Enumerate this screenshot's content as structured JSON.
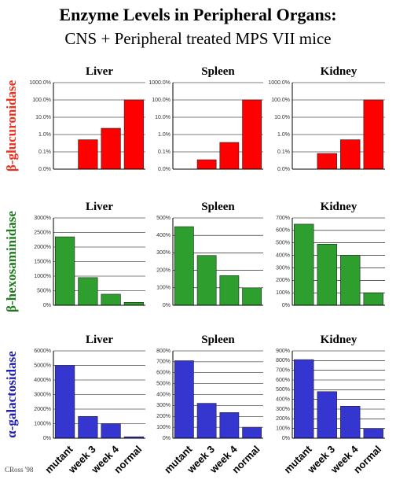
{
  "title": "Enzyme Levels in Peripheral Organs:",
  "subtitle": "CNS + Peripheral treated MPS VII mice",
  "credit": "CRoss '98",
  "categories": [
    "mutant",
    "week 3",
    "week 4",
    "normal"
  ],
  "rows": [
    {
      "label": "β-glucuronidase",
      "color": "#e8321e"
    },
    {
      "label": "β-hexosaminidase",
      "color": "#1f7a1f"
    },
    {
      "label": "α-galactosidase",
      "color": "#1f1fb0"
    }
  ],
  "chart_data": [
    {
      "type": "bar",
      "title": "Liver",
      "color": "#ff0000",
      "log": true,
      "values": [
        0.01,
        0.5,
        2.3,
        100
      ],
      "ylim": [
        0.01,
        1000
      ],
      "yticks": [
        {
          "value": 0.01,
          "label": "0.0%"
        },
        {
          "value": 0.1,
          "label": "0.1%"
        },
        {
          "value": 1,
          "label": "1.0%"
        },
        {
          "value": 10,
          "label": "10.0%"
        },
        {
          "value": 100,
          "label": "100.0%"
        },
        {
          "value": 1000,
          "label": "1000.0%"
        }
      ]
    },
    {
      "type": "bar",
      "title": "Spleen",
      "color": "#ff0000",
      "log": true,
      "values": [
        0.01,
        0.035,
        0.35,
        100
      ],
      "ylim": [
        0.01,
        1000
      ],
      "yticks": [
        {
          "value": 0.01,
          "label": "0.0%"
        },
        {
          "value": 0.1,
          "label": "0.1%"
        },
        {
          "value": 1,
          "label": "1.0%"
        },
        {
          "value": 10,
          "label": "10.0%"
        },
        {
          "value": 100,
          "label": "100.0%"
        },
        {
          "value": 1000,
          "label": "1000.0%"
        }
      ]
    },
    {
      "type": "bar",
      "title": "Kidney",
      "color": "#ff0000",
      "log": true,
      "values": [
        0.01,
        0.08,
        0.5,
        100
      ],
      "ylim": [
        0.01,
        1000
      ],
      "yticks": [
        {
          "value": 0.01,
          "label": "0.0%"
        },
        {
          "value": 0.1,
          "label": "0.1%"
        },
        {
          "value": 1,
          "label": "1.0%"
        },
        {
          "value": 10,
          "label": "10.0%"
        },
        {
          "value": 100,
          "label": "100.0%"
        },
        {
          "value": 1000,
          "label": "1000.0%"
        }
      ]
    },
    {
      "type": "bar",
      "title": "Liver",
      "color": "#2e9e2e",
      "values": [
        2350,
        950,
        380,
        100
      ],
      "ylim": [
        0,
        3000
      ],
      "yticks": [
        {
          "value": 0,
          "label": "0%"
        },
        {
          "value": 500,
          "label": "500%"
        },
        {
          "value": 1000,
          "label": "1000%"
        },
        {
          "value": 1500,
          "label": "1500%"
        },
        {
          "value": 2000,
          "label": "2000%"
        },
        {
          "value": 2500,
          "label": "2500%"
        },
        {
          "value": 3000,
          "label": "3000%"
        }
      ]
    },
    {
      "type": "bar",
      "title": "Spleen",
      "color": "#2e9e2e",
      "values": [
        450,
        285,
        170,
        100
      ],
      "ylim": [
        0,
        500
      ],
      "yticks": [
        {
          "value": 0,
          "label": "0%"
        },
        {
          "value": 100,
          "label": "100%"
        },
        {
          "value": 200,
          "label": "200%"
        },
        {
          "value": 300,
          "label": "300%"
        },
        {
          "value": 400,
          "label": "400%"
        },
        {
          "value": 500,
          "label": "500%"
        }
      ]
    },
    {
      "type": "bar",
      "title": "Kidney",
      "color": "#2e9e2e",
      "values": [
        650,
        490,
        400,
        100
      ],
      "ylim": [
        0,
        700
      ],
      "yticks": [
        {
          "value": 0,
          "label": "0%"
        },
        {
          "value": 100,
          "label": "100%"
        },
        {
          "value": 200,
          "label": "200%"
        },
        {
          "value": 300,
          "label": "300%"
        },
        {
          "value": 400,
          "label": "400%"
        },
        {
          "value": 500,
          "label": "500%"
        },
        {
          "value": 600,
          "label": "600%"
        },
        {
          "value": 700,
          "label": "700%"
        }
      ]
    },
    {
      "type": "bar",
      "title": "Liver",
      "color": "#3535d0",
      "values": [
        5000,
        1500,
        1000,
        100
      ],
      "ylim": [
        0,
        6000
      ],
      "yticks": [
        {
          "value": 0,
          "label": "0%"
        },
        {
          "value": 1000,
          "label": "1000%"
        },
        {
          "value": 2000,
          "label": "2000%"
        },
        {
          "value": 3000,
          "label": "3000%"
        },
        {
          "value": 4000,
          "label": "4000%"
        },
        {
          "value": 5000,
          "label": "5000%"
        },
        {
          "value": 6000,
          "label": "6000%"
        }
      ]
    },
    {
      "type": "bar",
      "title": "Spleen",
      "color": "#3535d0",
      "values": [
        710,
        320,
        235,
        100
      ],
      "ylim": [
        0,
        800
      ],
      "yticks": [
        {
          "value": 0,
          "label": "0%"
        },
        {
          "value": 100,
          "label": "100%"
        },
        {
          "value": 200,
          "label": "200%"
        },
        {
          "value": 300,
          "label": "300%"
        },
        {
          "value": 400,
          "label": "400%"
        },
        {
          "value": 500,
          "label": "500%"
        },
        {
          "value": 600,
          "label": "600%"
        },
        {
          "value": 700,
          "label": "700%"
        },
        {
          "value": 800,
          "label": "800%"
        }
      ]
    },
    {
      "type": "bar",
      "title": "Kidney",
      "color": "#3535d0",
      "values": [
        810,
        480,
        330,
        100
      ],
      "ylim": [
        0,
        900
      ],
      "yticks": [
        {
          "value": 0,
          "label": "0%"
        },
        {
          "value": 100,
          "label": "100%"
        },
        {
          "value": 200,
          "label": "200%"
        },
        {
          "value": 300,
          "label": "300%"
        },
        {
          "value": 400,
          "label": "400%"
        },
        {
          "value": 500,
          "label": "500%"
        },
        {
          "value": 600,
          "label": "600%"
        },
        {
          "value": 700,
          "label": "700%"
        },
        {
          "value": 800,
          "label": "800%"
        },
        {
          "value": 900,
          "label": "900%"
        }
      ]
    }
  ]
}
